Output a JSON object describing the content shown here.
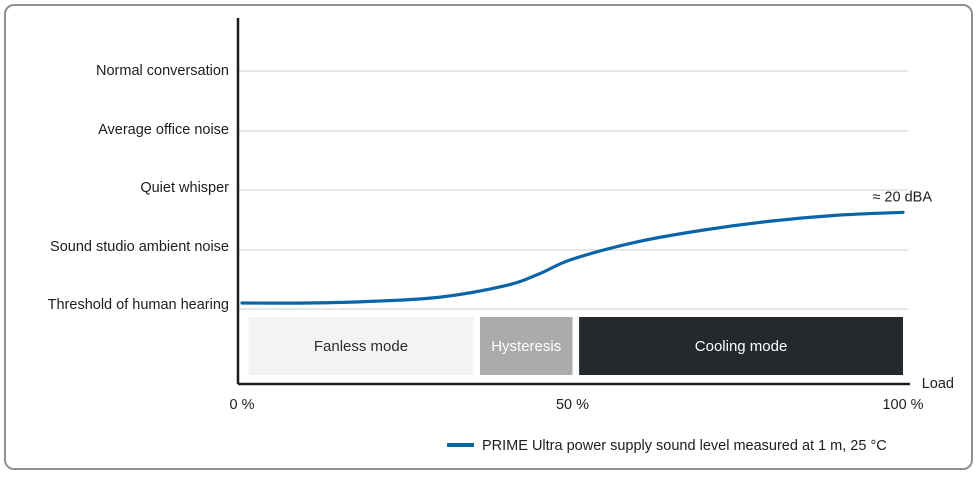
{
  "chart_data": {
    "type": "line",
    "title": "",
    "xlabel": "Load",
    "ylabel": "",
    "x_ticks": [
      "0 %",
      "50 %",
      "100 %"
    ],
    "xlim": [
      0,
      100
    ],
    "y_categories": [
      "Threshold of human hearing",
      "Sound studio ambient noise",
      "Quiet whisper",
      "Average office noise",
      "Normal conversation"
    ],
    "grid": true,
    "series": [
      {
        "name": "PRIME Ultra power supply sound level measured at 1 m, 25 °C",
        "color": "#0a64a8",
        "x": [
          0,
          10,
          20,
          30,
          40,
          45,
          50,
          60,
          70,
          80,
          90,
          100
        ],
        "y": [
          0.0,
          0.0,
          0.03,
          0.1,
          0.3,
          0.5,
          0.75,
          1.05,
          1.25,
          1.4,
          1.5,
          1.55
        ]
      }
    ],
    "modes": [
      {
        "label": "Fanless mode",
        "x_start": 1,
        "x_end": 35,
        "fill": "#f3f3f3",
        "text_color": "#2c2c2c"
      },
      {
        "label": "Hysteresis",
        "x_start": 36,
        "x_end": 50,
        "fill": "#ababab",
        "text_color": "#ffffff"
      },
      {
        "label": "Cooling mode",
        "x_start": 51,
        "x_end": 100,
        "fill": "#23292c",
        "text_color": "#ffffff"
      }
    ],
    "annotations": [
      {
        "text": "≈ 20 dBA",
        "x": 100,
        "y": 1.55
      }
    ],
    "legend_position": "bottom-right"
  }
}
